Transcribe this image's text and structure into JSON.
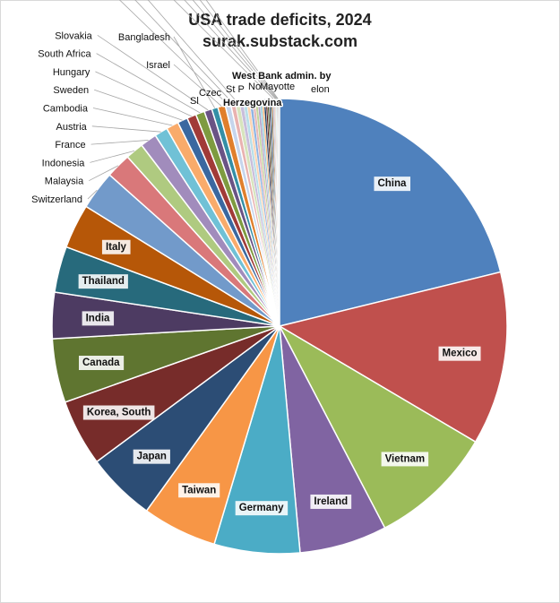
{
  "chart_data": {
    "type": "pie",
    "title": "USA trade deficits, 2024",
    "subtitle": "surak.substack.com",
    "slices": [
      {
        "label": "China",
        "value": 295.4,
        "color": "#4f81bd",
        "label_style": "box"
      },
      {
        "label": "Mexico",
        "value": 171.8,
        "color": "#c0504d",
        "label_style": "box"
      },
      {
        "label": "Vietnam",
        "value": 123.5,
        "color": "#9bbb59",
        "label_style": "box"
      },
      {
        "label": "Ireland",
        "value": 86.7,
        "color": "#8064a2",
        "label_style": "box"
      },
      {
        "label": "Germany",
        "value": 84.8,
        "color": "#4bacc6",
        "label_style": "box"
      },
      {
        "label": "Taiwan",
        "value": 73.9,
        "color": "#f79646",
        "label_style": "box"
      },
      {
        "label": "Japan",
        "value": 68.5,
        "color": "#2c4d75",
        "label_style": "box"
      },
      {
        "label": "Korea, South",
        "value": 66.0,
        "color": "#772c2a",
        "label_style": "box"
      },
      {
        "label": "Canada",
        "value": 63.3,
        "color": "#5f7530",
        "label_style": "box"
      },
      {
        "label": "India",
        "value": 45.7,
        "color": "#4d3b62",
        "label_style": "box"
      },
      {
        "label": "Thailand",
        "value": 45.6,
        "color": "#276a7c",
        "label_style": "box"
      },
      {
        "label": "Italy",
        "value": 44.0,
        "color": "#b65708",
        "label_style": "box"
      },
      {
        "label": "Switzerland",
        "value": 38.5,
        "color": "#729aca",
        "label_style": "out"
      },
      {
        "label": "Malaysia",
        "value": 24.8,
        "color": "#d9787a",
        "label_style": "out"
      },
      {
        "label": "Indonesia",
        "value": 17.9,
        "color": "#afca80",
        "label_style": "out"
      },
      {
        "label": "France",
        "value": 16.4,
        "color": "#a18cbc",
        "label_style": "out"
      },
      {
        "label": "Austria",
        "value": 13.1,
        "color": "#70c1d6",
        "label_style": "out"
      },
      {
        "label": "Cambodia",
        "value": 12.3,
        "color": "#f9ab6b",
        "label_style": "out"
      },
      {
        "label": "Sweden",
        "value": 10.0,
        "color": "#3a68a0",
        "label_style": "out"
      },
      {
        "label": "Hungary",
        "value": 9.2,
        "color": "#a13b38",
        "label_style": "out"
      },
      {
        "label": "South Africa",
        "value": 8.8,
        "color": "#7e9b40",
        "label_style": "out"
      },
      {
        "label": "Slovakia",
        "value": 7.6,
        "color": "#6a5385",
        "label_style": "out"
      },
      {
        "label": "Bangladesh",
        "value": 6.2,
        "color": "#348fa6",
        "label_style": "out"
      },
      {
        "label": "Israel",
        "value": 7.4,
        "color": "#e07f2c",
        "label_style": "out"
      },
      {
        "label": "Sl",
        "value": 5.5,
        "color": "#c6d5ec",
        "label_style": "out"
      },
      {
        "label": "Czec",
        "value": 4.8,
        "color": "#e9b2b0",
        "label_style": "out"
      },
      {
        "label": "St P",
        "value": 4.0,
        "color": "#d7e4bd",
        "label_style": "out"
      },
      {
        "label": "",
        "value": 3.6,
        "color": "#c9bedb",
        "label_style": "none"
      },
      {
        "label": "",
        "value": 3.3,
        "color": "#b9dfe9",
        "label_style": "none"
      },
      {
        "label": "",
        "value": 3.0,
        "color": "#fcd5b4",
        "label_style": "none"
      },
      {
        "label": "",
        "value": 2.8,
        "color": "#8eb4e3",
        "label_style": "none"
      },
      {
        "label": "",
        "value": 2.6,
        "color": "#e6b9b8",
        "label_style": "none"
      },
      {
        "label": "",
        "value": 2.4,
        "color": "#c3d69b",
        "label_style": "none"
      },
      {
        "label": "",
        "value": 2.2,
        "color": "#b3a2c7",
        "label_style": "none"
      },
      {
        "label": "",
        "value": 2.0,
        "color": "#93cddd",
        "label_style": "none"
      },
      {
        "label": "",
        "value": 1.9,
        "color": "#fab77b",
        "label_style": "none"
      },
      {
        "label": "",
        "value": 1.8,
        "color": "#17375e",
        "label_style": "none"
      },
      {
        "label": "",
        "value": 1.6,
        "color": "#632423",
        "label_style": "none"
      },
      {
        "label": "",
        "value": 1.5,
        "color": "#4f6228",
        "label_style": "none"
      },
      {
        "label": "",
        "value": 1.4,
        "color": "#3f3151",
        "label_style": "none"
      },
      {
        "label": "",
        "value": 1.3,
        "color": "#205867",
        "label_style": "none"
      },
      {
        "label": "",
        "value": 1.2,
        "color": "#974806",
        "label_style": "none"
      },
      {
        "label": "No",
        "value": 1.1,
        "color": "#95b3d7",
        "label_style": "out"
      },
      {
        "label": "",
        "value": 1.0,
        "color": "#d99694",
        "label_style": "none"
      },
      {
        "label": "Mayotte",
        "value": 0.9,
        "color": "#c4bd97",
        "label_style": "out"
      },
      {
        "label": "elon",
        "value": 0.85,
        "color": "#b7dee8",
        "label_style": "out"
      },
      {
        "label": "West Bank admin. by",
        "value": 0.8,
        "color": "#a6a6a6",
        "label_style": "out"
      },
      {
        "label": "Herzegovina",
        "value": 0.75,
        "color": "#d9d9d9",
        "label_style": "out"
      },
      {
        "label": "",
        "value": 0.7,
        "color": "#7f7f7f",
        "label_style": "none"
      },
      {
        "label": "",
        "value": 0.6,
        "color": "#bfbfbf",
        "label_style": "none"
      }
    ]
  }
}
